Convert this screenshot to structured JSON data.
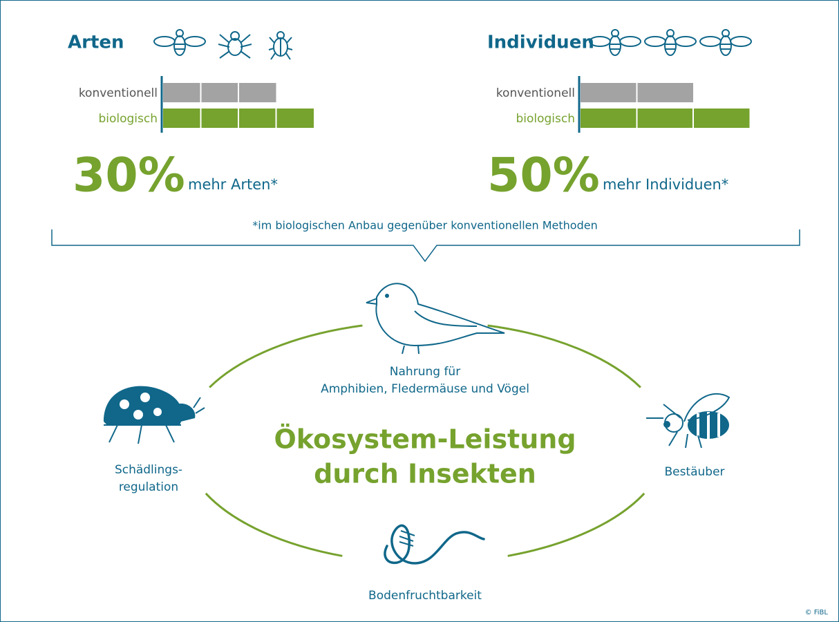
{
  "panels": [
    {
      "title": "Arten",
      "rows": [
        {
          "label": "konventionell",
          "segments": 3
        },
        {
          "label": "biologisch",
          "segments": 4
        }
      ],
      "percent": "30%",
      "text": "mehr Arten*"
    },
    {
      "title": "Individuen",
      "rows": [
        {
          "label": "konventionell",
          "segments": 2
        },
        {
          "label": "biologisch",
          "segments": 3
        }
      ],
      "percent": "50%",
      "text": "mehr Individuen*"
    }
  ],
  "footnote": "*im biologischen Anbau gegenüber konventionellen Methoden",
  "center_title": [
    "Ökosystem-Leistung",
    "durch Insekten"
  ],
  "services": {
    "food": [
      "Nahrung für",
      "Amphibien, Fledermäuse und Vögel"
    ],
    "pest": [
      "Schädlings-",
      "regulation"
    ],
    "pollinator": [
      "Bestäuber"
    ],
    "soil": [
      "Bodenfruchtbarkeit"
    ]
  },
  "credit": "© FiBL"
}
